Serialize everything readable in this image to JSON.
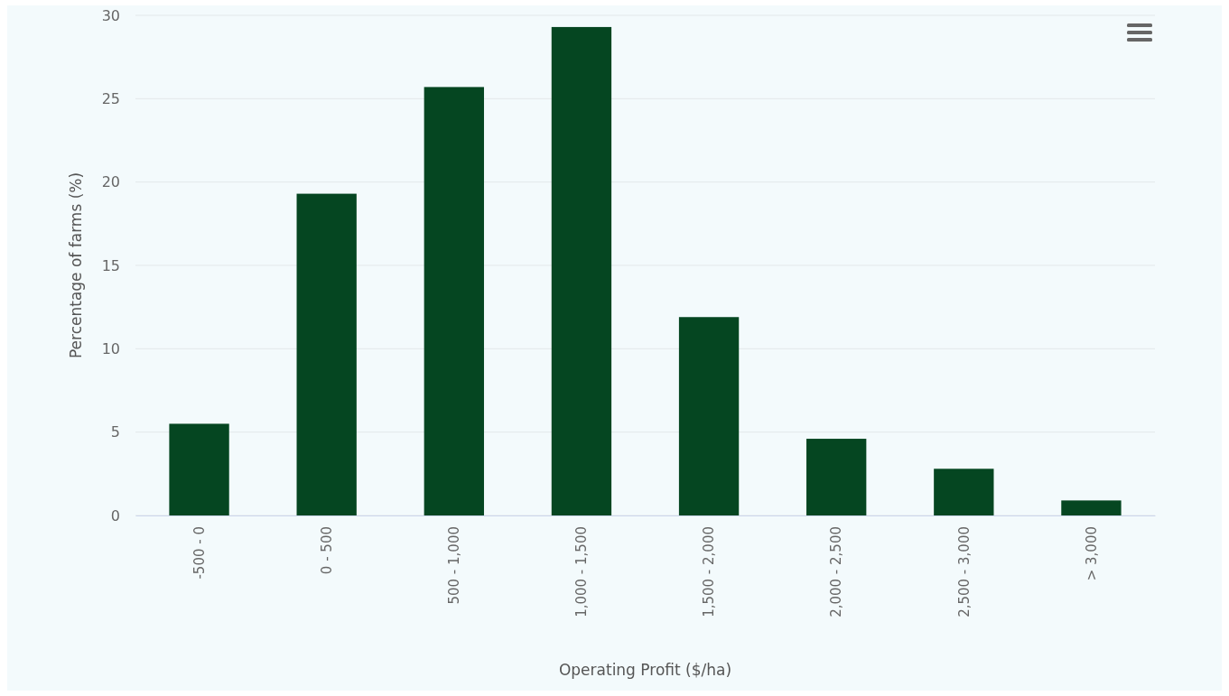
{
  "chart_data": {
    "type": "bar",
    "xlabel": "Operating Profit ($/ha)",
    "ylabel": "Percentage of farms (%)",
    "categories": [
      "-500 - 0",
      "0 - 500",
      "500 - 1,000",
      "1,000 - 1,500",
      "1,500 - 2,000",
      "2,000 - 2,500",
      "2,500 - 3,000",
      "> 3,000"
    ],
    "values": [
      5.5,
      19.3,
      25.7,
      29.3,
      11.9,
      4.6,
      2.8,
      0.9
    ],
    "color": "#054621",
    "ylim": [
      0,
      30
    ],
    "yticks": [
      0,
      5,
      10,
      15,
      20,
      25,
      30
    ],
    "grid": "y"
  }
}
